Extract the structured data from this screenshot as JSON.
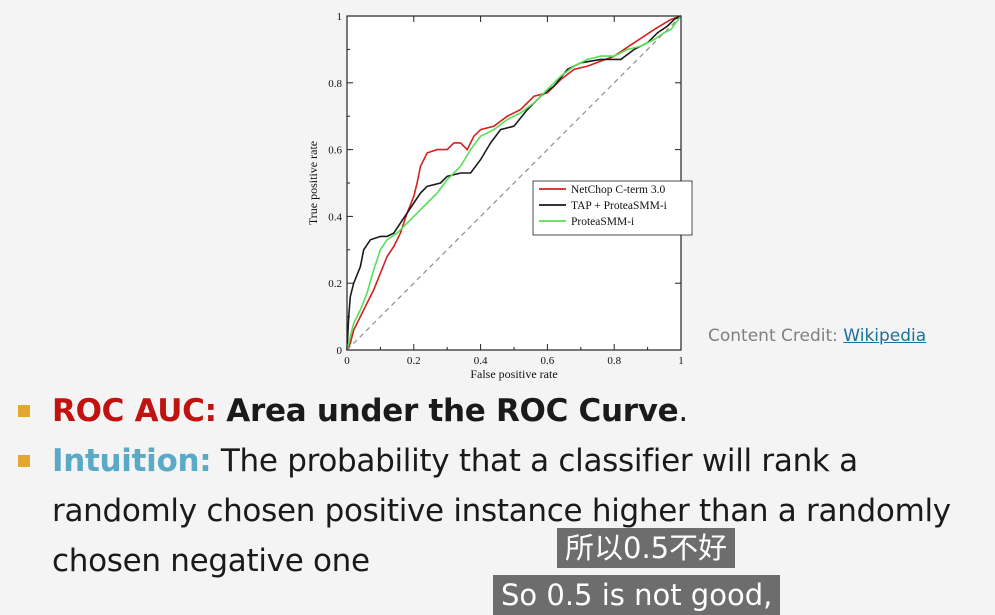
{
  "chart_data": {
    "type": "line",
    "xlabel": "False positive rate",
    "ylabel": "True positive rate",
    "xlim": [
      0,
      1
    ],
    "ylim": [
      0,
      1
    ],
    "x_ticks": [
      "0",
      "0.2",
      "0.4",
      "0.6",
      "0.8",
      "1"
    ],
    "y_ticks": [
      "0",
      "0.2",
      "0.4",
      "0.6",
      "0.8",
      "1"
    ],
    "grid": false,
    "legend_position": "lower-right",
    "series": [
      {
        "name": "NetChop C-term 3.0",
        "color": "#d42020",
        "points": [
          [
            0,
            0
          ],
          [
            0.01,
            0.02
          ],
          [
            0.02,
            0.06
          ],
          [
            0.04,
            0.1
          ],
          [
            0.06,
            0.14
          ],
          [
            0.08,
            0.18
          ],
          [
            0.1,
            0.23
          ],
          [
            0.12,
            0.28
          ],
          [
            0.14,
            0.31
          ],
          [
            0.16,
            0.35
          ],
          [
            0.18,
            0.41
          ],
          [
            0.2,
            0.46
          ],
          [
            0.21,
            0.5
          ],
          [
            0.22,
            0.55
          ],
          [
            0.24,
            0.59
          ],
          [
            0.27,
            0.6
          ],
          [
            0.3,
            0.6
          ],
          [
            0.32,
            0.62
          ],
          [
            0.34,
            0.62
          ],
          [
            0.36,
            0.6
          ],
          [
            0.38,
            0.64
          ],
          [
            0.4,
            0.66
          ],
          [
            0.44,
            0.67
          ],
          [
            0.48,
            0.7
          ],
          [
            0.52,
            0.72
          ],
          [
            0.56,
            0.76
          ],
          [
            0.6,
            0.77
          ],
          [
            0.64,
            0.81
          ],
          [
            0.68,
            0.84
          ],
          [
            0.72,
            0.85
          ],
          [
            0.8,
            0.88
          ],
          [
            0.86,
            0.92
          ],
          [
            0.92,
            0.96
          ],
          [
            0.97,
            0.99
          ],
          [
            1,
            1
          ]
        ]
      },
      {
        "name": "TAP + ProteaSMM-i",
        "color": "#1a1a1a",
        "points": [
          [
            0,
            0
          ],
          [
            0.005,
            0.1
          ],
          [
            0.01,
            0.16
          ],
          [
            0.02,
            0.2
          ],
          [
            0.04,
            0.25
          ],
          [
            0.05,
            0.3
          ],
          [
            0.07,
            0.33
          ],
          [
            0.1,
            0.34
          ],
          [
            0.12,
            0.34
          ],
          [
            0.14,
            0.35
          ],
          [
            0.16,
            0.38
          ],
          [
            0.18,
            0.41
          ],
          [
            0.2,
            0.44
          ],
          [
            0.22,
            0.47
          ],
          [
            0.24,
            0.49
          ],
          [
            0.28,
            0.5
          ],
          [
            0.3,
            0.52
          ],
          [
            0.34,
            0.53
          ],
          [
            0.37,
            0.53
          ],
          [
            0.4,
            0.57
          ],
          [
            0.43,
            0.62
          ],
          [
            0.46,
            0.66
          ],
          [
            0.5,
            0.67
          ],
          [
            0.54,
            0.72
          ],
          [
            0.58,
            0.76
          ],
          [
            0.62,
            0.79
          ],
          [
            0.66,
            0.84
          ],
          [
            0.7,
            0.86
          ],
          [
            0.76,
            0.87
          ],
          [
            0.82,
            0.87
          ],
          [
            0.86,
            0.9
          ],
          [
            0.9,
            0.92
          ],
          [
            0.93,
            0.95
          ],
          [
            0.96,
            0.97
          ],
          [
            0.98,
            0.99
          ],
          [
            1,
            1
          ]
        ]
      },
      {
        "name": "ProteaSMM-i",
        "color": "#55e055",
        "points": [
          [
            0,
            0
          ],
          [
            0.01,
            0.04
          ],
          [
            0.02,
            0.08
          ],
          [
            0.04,
            0.12
          ],
          [
            0.06,
            0.17
          ],
          [
            0.08,
            0.24
          ],
          [
            0.1,
            0.3
          ],
          [
            0.12,
            0.33
          ],
          [
            0.15,
            0.35
          ],
          [
            0.18,
            0.38
          ],
          [
            0.21,
            0.41
          ],
          [
            0.24,
            0.44
          ],
          [
            0.27,
            0.47
          ],
          [
            0.3,
            0.51
          ],
          [
            0.34,
            0.55
          ],
          [
            0.37,
            0.6
          ],
          [
            0.4,
            0.64
          ],
          [
            0.44,
            0.66
          ],
          [
            0.48,
            0.69
          ],
          [
            0.52,
            0.71
          ],
          [
            0.56,
            0.74
          ],
          [
            0.6,
            0.78
          ],
          [
            0.64,
            0.82
          ],
          [
            0.68,
            0.85
          ],
          [
            0.72,
            0.87
          ],
          [
            0.76,
            0.88
          ],
          [
            0.8,
            0.88
          ],
          [
            0.84,
            0.9
          ],
          [
            0.88,
            0.91
          ],
          [
            0.92,
            0.93
          ],
          [
            0.95,
            0.95
          ],
          [
            0.97,
            0.96
          ],
          [
            1,
            1
          ]
        ]
      }
    ],
    "reference_line": {
      "color": "#9a8a8a",
      "points": [
        [
          0,
          0
        ],
        [
          1,
          1
        ]
      ]
    }
  },
  "credit": {
    "label": "Content Credit:",
    "link": "Wikipedia",
    "color": "#808080",
    "link_color": "#1f6f9a"
  },
  "bullets": {
    "bullet_color": "#e3a72f",
    "b1": {
      "keyword": "ROC AUC:",
      "keyword_color": "#c0120f",
      "bold_text": "Area under the ROC Curve",
      "tail": "."
    },
    "b2": {
      "keyword": "Intuition:",
      "keyword_color": "#5aaac7",
      "text": "The probability that a classifier will rank a randomly chosen positive instance higher than a randomly chosen negative one"
    }
  },
  "subtitles": {
    "zh": "所以0.5不好",
    "en": "So 0.5 is not good,"
  }
}
